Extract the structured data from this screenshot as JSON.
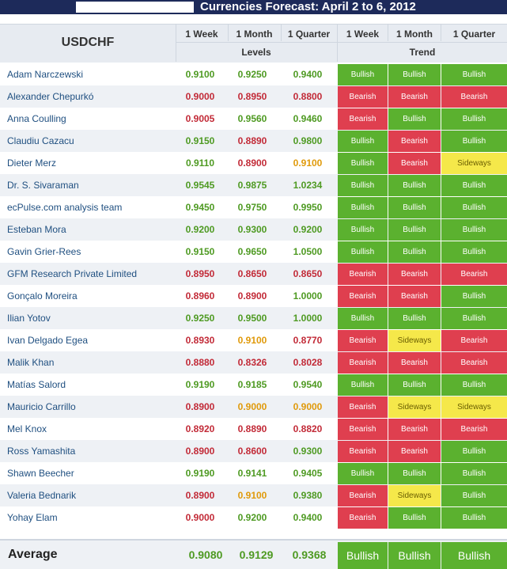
{
  "title": "Currencies Forecast: April 2 to 6, 2012",
  "pair": "USDCHF",
  "headers": {
    "levels_cols": [
      "1 Week",
      "1 Month",
      "1 Quarter"
    ],
    "trend_cols": [
      "1 Week",
      "1 Month",
      "1 Quarter"
    ],
    "levels_group": "Levels",
    "trend_group": "Trend"
  },
  "colors": {
    "bullish": "#5bb12f",
    "bearish": "#df3f4f",
    "sideways": "#f5e84a",
    "header_bg": "#1d2a5a",
    "name_text": "#1f4f80"
  },
  "rows": [
    {
      "name": "Adam Narczewski",
      "levels": [
        {
          "v": "0.9100",
          "c": "green"
        },
        {
          "v": "0.9250",
          "c": "green"
        },
        {
          "v": "0.9400",
          "c": "green"
        }
      ],
      "trend": [
        "Bullish",
        "Bullish",
        "Bullish"
      ]
    },
    {
      "name": "Alexander Chepurkó",
      "levels": [
        {
          "v": "0.9000",
          "c": "red"
        },
        {
          "v": "0.8950",
          "c": "red"
        },
        {
          "v": "0.8800",
          "c": "red"
        }
      ],
      "trend": [
        "Bearish",
        "Bearish",
        "Bearish"
      ]
    },
    {
      "name": "Anna Coulling",
      "levels": [
        {
          "v": "0.9005",
          "c": "red"
        },
        {
          "v": "0.9560",
          "c": "green"
        },
        {
          "v": "0.9460",
          "c": "green"
        }
      ],
      "trend": [
        "Bearish",
        "Bullish",
        "Bullish"
      ]
    },
    {
      "name": "Claudiu Cazacu",
      "levels": [
        {
          "v": "0.9150",
          "c": "green"
        },
        {
          "v": "0.8890",
          "c": "red"
        },
        {
          "v": "0.9800",
          "c": "green"
        }
      ],
      "trend": [
        "Bullish",
        "Bearish",
        "Bullish"
      ]
    },
    {
      "name": "Dieter Merz",
      "levels": [
        {
          "v": "0.9110",
          "c": "green"
        },
        {
          "v": "0.8900",
          "c": "red"
        },
        {
          "v": "0.9100",
          "c": "orange"
        }
      ],
      "trend": [
        "Bullish",
        "Bearish",
        "Sideways"
      ]
    },
    {
      "name": "Dr. S. Sivaraman",
      "levels": [
        {
          "v": "0.9545",
          "c": "green"
        },
        {
          "v": "0.9875",
          "c": "green"
        },
        {
          "v": "1.0234",
          "c": "green"
        }
      ],
      "trend": [
        "Bullish",
        "Bullish",
        "Bullish"
      ]
    },
    {
      "name": "ecPulse.com analysis team",
      "levels": [
        {
          "v": "0.9450",
          "c": "green"
        },
        {
          "v": "0.9750",
          "c": "green"
        },
        {
          "v": "0.9950",
          "c": "green"
        }
      ],
      "trend": [
        "Bullish",
        "Bullish",
        "Bullish"
      ]
    },
    {
      "name": "Esteban Mora",
      "levels": [
        {
          "v": "0.9200",
          "c": "green"
        },
        {
          "v": "0.9300",
          "c": "green"
        },
        {
          "v": "0.9200",
          "c": "green"
        }
      ],
      "trend": [
        "Bullish",
        "Bullish",
        "Bullish"
      ]
    },
    {
      "name": "Gavin Grier-Rees",
      "levels": [
        {
          "v": "0.9150",
          "c": "green"
        },
        {
          "v": "0.9650",
          "c": "green"
        },
        {
          "v": "1.0500",
          "c": "green"
        }
      ],
      "trend": [
        "Bullish",
        "Bullish",
        "Bullish"
      ]
    },
    {
      "name": "GFM Research Private Limited",
      "levels": [
        {
          "v": "0.8950",
          "c": "red"
        },
        {
          "v": "0.8650",
          "c": "red"
        },
        {
          "v": "0.8650",
          "c": "red"
        }
      ],
      "trend": [
        "Bearish",
        "Bearish",
        "Bearish"
      ]
    },
    {
      "name": "Gonçalo Moreira",
      "levels": [
        {
          "v": "0.8960",
          "c": "red"
        },
        {
          "v": "0.8900",
          "c": "red"
        },
        {
          "v": "1.0000",
          "c": "green"
        }
      ],
      "trend": [
        "Bearish",
        "Bearish",
        "Bullish"
      ]
    },
    {
      "name": "Ilian Yotov",
      "levels": [
        {
          "v": "0.9250",
          "c": "green"
        },
        {
          "v": "0.9500",
          "c": "green"
        },
        {
          "v": "1.0000",
          "c": "green"
        }
      ],
      "trend": [
        "Bullish",
        "Bullish",
        "Bullish"
      ]
    },
    {
      "name": "Ivan Delgado Egea",
      "levels": [
        {
          "v": "0.8930",
          "c": "red"
        },
        {
          "v": "0.9100",
          "c": "orange"
        },
        {
          "v": "0.8770",
          "c": "red"
        }
      ],
      "trend": [
        "Bearish",
        "Sideways",
        "Bearish"
      ]
    },
    {
      "name": "Malik Khan",
      "levels": [
        {
          "v": "0.8880",
          "c": "red"
        },
        {
          "v": "0.8326",
          "c": "red"
        },
        {
          "v": "0.8028",
          "c": "red"
        }
      ],
      "trend": [
        "Bearish",
        "Bearish",
        "Bearish"
      ]
    },
    {
      "name": "Matías Salord",
      "levels": [
        {
          "v": "0.9190",
          "c": "green"
        },
        {
          "v": "0.9185",
          "c": "green"
        },
        {
          "v": "0.9540",
          "c": "green"
        }
      ],
      "trend": [
        "Bullish",
        "Bullish",
        "Bullish"
      ]
    },
    {
      "name": "Mauricio Carrillo",
      "levels": [
        {
          "v": "0.8900",
          "c": "red"
        },
        {
          "v": "0.9000",
          "c": "orange"
        },
        {
          "v": "0.9000",
          "c": "orange"
        }
      ],
      "trend": [
        "Bearish",
        "Sideways",
        "Sideways"
      ]
    },
    {
      "name": "Mel Knox",
      "levels": [
        {
          "v": "0.8920",
          "c": "red"
        },
        {
          "v": "0.8890",
          "c": "red"
        },
        {
          "v": "0.8820",
          "c": "red"
        }
      ],
      "trend": [
        "Bearish",
        "Bearish",
        "Bearish"
      ]
    },
    {
      "name": "Ross Yamashita",
      "levels": [
        {
          "v": "0.8900",
          "c": "red"
        },
        {
          "v": "0.8600",
          "c": "red"
        },
        {
          "v": "0.9300",
          "c": "green"
        }
      ],
      "trend": [
        "Bearish",
        "Bearish",
        "Bullish"
      ]
    },
    {
      "name": "Shawn Beecher",
      "levels": [
        {
          "v": "0.9190",
          "c": "green"
        },
        {
          "v": "0.9141",
          "c": "green"
        },
        {
          "v": "0.9405",
          "c": "green"
        }
      ],
      "trend": [
        "Bullish",
        "Bullish",
        "Bullish"
      ]
    },
    {
      "name": "Valeria Bednarik",
      "levels": [
        {
          "v": "0.8900",
          "c": "red"
        },
        {
          "v": "0.9100",
          "c": "orange"
        },
        {
          "v": "0.9380",
          "c": "green"
        }
      ],
      "trend": [
        "Bearish",
        "Sideways",
        "Bullish"
      ]
    },
    {
      "name": "Yohay Elam",
      "levels": [
        {
          "v": "0.9000",
          "c": "red"
        },
        {
          "v": "0.9200",
          "c": "green"
        },
        {
          "v": "0.9400",
          "c": "green"
        }
      ],
      "trend": [
        "Bearish",
        "Bullish",
        "Bullish"
      ]
    }
  ],
  "average": {
    "label": "Average",
    "levels": [
      "0.9080",
      "0.9129",
      "0.9368"
    ],
    "trend": [
      "Bullish",
      "Bullish",
      "Bullish"
    ]
  }
}
